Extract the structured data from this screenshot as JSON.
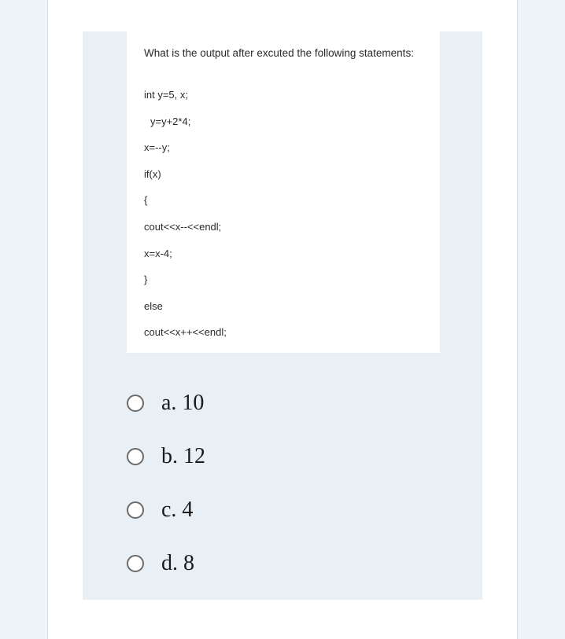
{
  "question": {
    "title": "What is the output after excuted the following statements:",
    "code_lines": [
      {
        "text": "int y=5, x;",
        "indent": false
      },
      {
        "text": "y=y+2*4;",
        "indent": true
      },
      {
        "text": "x=--y;",
        "indent": false
      },
      {
        "text": "if(x)",
        "indent": false
      },
      {
        "text": "{",
        "indent": false
      },
      {
        "text": "cout<<x--<<endl;",
        "indent": false
      },
      {
        "text": "x=x-4;",
        "indent": false
      },
      {
        "text": "}",
        "indent": false
      },
      {
        "text": "else",
        "indent": false
      },
      {
        "text": "cout<<x++<<endl;",
        "indent": false
      }
    ]
  },
  "options": [
    {
      "label": "a. 10"
    },
    {
      "label": "b. 12"
    },
    {
      "label": "c. 4"
    },
    {
      "label": "d. 8"
    }
  ],
  "styles": {
    "page_bg": "#eef3f7",
    "card_bg": "#e8eff5",
    "code_bg": "#ffffff",
    "text_color": "#2a2a2a",
    "option_color": "#1a1a1a",
    "radio_border": "#6b6b6b",
    "title_fontsize": 13.5,
    "code_fontsize": 13,
    "option_fontsize": 28
  }
}
